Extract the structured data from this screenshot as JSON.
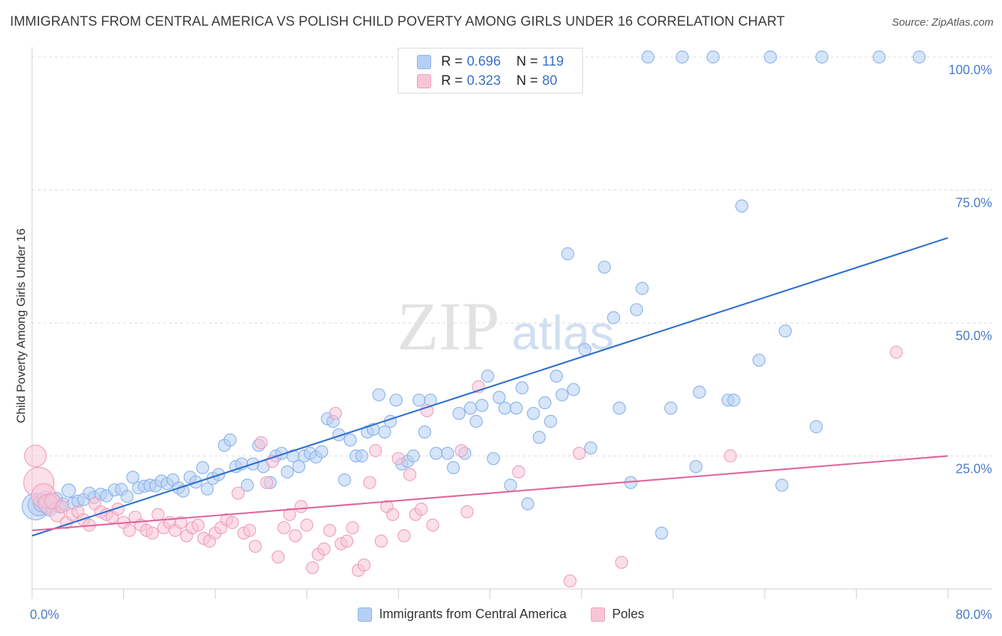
{
  "title": "IMMIGRANTS FROM CENTRAL AMERICA VS POLISH CHILD POVERTY AMONG GIRLS UNDER 16 CORRELATION CHART",
  "source": "Source: ZipAtlas.com",
  "watermark": {
    "zip": "ZIP",
    "atlas": "atlas"
  },
  "stats": {
    "r_label": "R =",
    "n_label": "N =",
    "series1": {
      "r": "0.696",
      "n": "119"
    },
    "series2": {
      "r": "0.323",
      "n": "80"
    }
  },
  "chart_data": {
    "type": "scatter",
    "title": "IMMIGRANTS FROM CENTRAL AMERICA VS POLISH CHILD POVERTY AMONG GIRLS UNDER 16 CORRELATION CHART",
    "xlabel": "",
    "ylabel": "Child Poverty Among Girls Under 16",
    "xlim": [
      0,
      80
    ],
    "ylim": [
      0,
      100
    ],
    "x_tick_labels": {
      "min": "0.0%",
      "max": "80.0%"
    },
    "y_tick_labels": [
      "25.0%",
      "50.0%",
      "75.0%",
      "100.0%"
    ],
    "y_ticks": [
      25,
      50,
      75,
      100
    ],
    "x_ticks": [
      0,
      8,
      16,
      24,
      32,
      40,
      48,
      56,
      64,
      72,
      80
    ],
    "grid": "horizontal dashed",
    "legend_position": "bottom-center",
    "series": [
      {
        "name": "Immigrants from Central America",
        "color": "#8ab4ec",
        "fill": "#b6d0f3",
        "line_color": "#2f6fd1",
        "trend": {
          "x": [
            0,
            80
          ],
          "y": [
            10.0,
            66.0
          ]
        },
        "points": [
          [
            0.3,
            15.5,
            2.2
          ],
          [
            0.6,
            15.8,
            1.8
          ],
          [
            0.9,
            16.2,
            1.5
          ],
          [
            1.2,
            16.8,
            1.4
          ],
          [
            1.5,
            15.2,
            1.3
          ],
          [
            1.8,
            16.5,
            1.2
          ],
          [
            2.1,
            16.9,
            1.1
          ],
          [
            2.4,
            15.4,
            1.0
          ],
          [
            2.7,
            16.0,
            1.0
          ],
          [
            3.2,
            18.5,
            1.1
          ],
          [
            3.6,
            16.1,
            1.0
          ],
          [
            4.0,
            16.5,
            1.0
          ],
          [
            4.5,
            16.8,
            1.0
          ],
          [
            5.0,
            18.0,
            1.0
          ],
          [
            5.4,
            17.2,
            1.0
          ],
          [
            6.0,
            17.8,
            1.0
          ],
          [
            6.5,
            17.5,
            1.0
          ],
          [
            7.2,
            18.6,
            1.0
          ],
          [
            7.8,
            18.7,
            1.0
          ],
          [
            8.3,
            17.4,
            1.0
          ],
          [
            8.8,
            21.0,
            1.0
          ],
          [
            9.3,
            19.0,
            1.0
          ],
          [
            9.8,
            19.3,
            1.0
          ],
          [
            10.3,
            19.5,
            1.0
          ],
          [
            10.8,
            19.4,
            1.0
          ],
          [
            11.3,
            20.3,
            1.0
          ],
          [
            11.8,
            19.8,
            1.0
          ],
          [
            12.3,
            20.5,
            1.0
          ],
          [
            12.8,
            19.0,
            1.0
          ],
          [
            13.2,
            18.4,
            1.0
          ],
          [
            13.8,
            21.0,
            1.0
          ],
          [
            14.3,
            20.1,
            1.0
          ],
          [
            14.9,
            22.8,
            1.0
          ],
          [
            15.3,
            18.8,
            1.0
          ],
          [
            15.8,
            20.8,
            1.0
          ],
          [
            16.3,
            21.5,
            1.0
          ],
          [
            16.8,
            27.0,
            1.0
          ],
          [
            17.3,
            28.0,
            1.0
          ],
          [
            17.8,
            23.0,
            1.0
          ],
          [
            18.3,
            23.5,
            1.0
          ],
          [
            18.8,
            19.5,
            1.0
          ],
          [
            19.3,
            23.5,
            1.0
          ],
          [
            19.8,
            27.0,
            1.0
          ],
          [
            20.2,
            23.0,
            1.0
          ],
          [
            20.8,
            20.0,
            1.0
          ],
          [
            21.3,
            25.0,
            1.0
          ],
          [
            21.8,
            25.5,
            1.0
          ],
          [
            22.3,
            22.0,
            1.0
          ],
          [
            22.8,
            25.0,
            1.0
          ],
          [
            23.3,
            23.0,
            1.0
          ],
          [
            23.8,
            25.0,
            1.0
          ],
          [
            24.3,
            25.5,
            1.0
          ],
          [
            24.8,
            24.8,
            1.0
          ],
          [
            25.3,
            25.8,
            1.0
          ],
          [
            25.8,
            32.0,
            1.0
          ],
          [
            26.3,
            31.5,
            1.0
          ],
          [
            26.8,
            29.0,
            1.0
          ],
          [
            27.3,
            20.5,
            1.0
          ],
          [
            27.8,
            28.0,
            1.0
          ],
          [
            28.3,
            25.0,
            1.0
          ],
          [
            28.8,
            25.0,
            1.0
          ],
          [
            29.3,
            29.5,
            1.0
          ],
          [
            29.8,
            30.0,
            1.0
          ],
          [
            30.3,
            36.5,
            1.0
          ],
          [
            30.8,
            29.5,
            1.0
          ],
          [
            31.3,
            31.5,
            1.0
          ],
          [
            31.8,
            35.5,
            1.0
          ],
          [
            32.3,
            23.5,
            1.0
          ],
          [
            32.8,
            24.0,
            1.0
          ],
          [
            33.3,
            25.0,
            1.0
          ],
          [
            33.8,
            35.5,
            1.0
          ],
          [
            34.3,
            29.5,
            1.0
          ],
          [
            34.8,
            35.5,
            1.0
          ],
          [
            35.3,
            25.5,
            1.0
          ],
          [
            36.3,
            25.5,
            1.0
          ],
          [
            36.8,
            22.8,
            1.0
          ],
          [
            37.3,
            33.0,
            1.0
          ],
          [
            37.8,
            25.5,
            1.0
          ],
          [
            38.3,
            34.0,
            1.0
          ],
          [
            38.8,
            31.5,
            1.0
          ],
          [
            39.3,
            34.5,
            1.0
          ],
          [
            39.8,
            40.0,
            1.0
          ],
          [
            40.3,
            24.5,
            1.0
          ],
          [
            40.8,
            36.0,
            1.0
          ],
          [
            41.3,
            34.0,
            1.0
          ],
          [
            41.8,
            19.5,
            1.0
          ],
          [
            42.3,
            34.0,
            1.0
          ],
          [
            42.8,
            37.8,
            1.0
          ],
          [
            43.3,
            16.0,
            1.0
          ],
          [
            43.8,
            33.0,
            1.0
          ],
          [
            44.3,
            28.5,
            1.0
          ],
          [
            44.8,
            35.0,
            1.0
          ],
          [
            45.3,
            31.5,
            1.0
          ],
          [
            45.8,
            40.0,
            1.0
          ],
          [
            46.3,
            36.5,
            1.0
          ],
          [
            46.8,
            63.0,
            1.0
          ],
          [
            47.3,
            37.5,
            1.0
          ],
          [
            48.3,
            45.0,
            1.0
          ],
          [
            48.8,
            26.5,
            1.0
          ],
          [
            50.0,
            60.5,
            1.0
          ],
          [
            50.8,
            51.0,
            1.0
          ],
          [
            51.3,
            34.0,
            1.0
          ],
          [
            52.3,
            20.0,
            1.0
          ],
          [
            52.8,
            52.5,
            1.0
          ],
          [
            53.3,
            56.5,
            1.0
          ],
          [
            53.8,
            100.0,
            1.0
          ],
          [
            55.0,
            10.5,
            1.0
          ],
          [
            55.8,
            34.0,
            1.0
          ],
          [
            56.8,
            100.0,
            1.0
          ],
          [
            58.0,
            23.0,
            1.0
          ],
          [
            58.3,
            37.0,
            1.0
          ],
          [
            59.5,
            100.0,
            1.0
          ],
          [
            60.8,
            35.5,
            1.0
          ],
          [
            61.3,
            35.5,
            1.0
          ],
          [
            62.0,
            72.0,
            1.0
          ],
          [
            63.5,
            43.0,
            1.0
          ],
          [
            64.5,
            100.0,
            1.0
          ],
          [
            65.5,
            19.5,
            1.0
          ],
          [
            65.8,
            48.5,
            1.0
          ],
          [
            68.5,
            30.5,
            1.0
          ],
          [
            69.0,
            100.0,
            1.0
          ],
          [
            74.0,
            100.0,
            1.0
          ],
          [
            77.5,
            100.0,
            1.0
          ]
        ]
      },
      {
        "name": "Poles",
        "color": "#f0a0bd",
        "fill": "#f7c5d7",
        "line_color": "#e0679a",
        "trend": {
          "x": [
            0,
            80
          ],
          "y": [
            11.0,
            25.0
          ]
        },
        "points": [
          [
            0.3,
            25.0,
            1.8
          ],
          [
            0.6,
            20.0,
            2.5
          ],
          [
            1.0,
            17.5,
            2.0
          ],
          [
            1.4,
            16.0,
            1.6
          ],
          [
            1.8,
            16.5,
            1.3
          ],
          [
            2.2,
            14.0,
            1.2
          ],
          [
            2.6,
            15.5,
            1.0
          ],
          [
            3.0,
            12.5,
            1.0
          ],
          [
            3.5,
            14.0,
            1.0
          ],
          [
            4.0,
            14.5,
            1.0
          ],
          [
            4.5,
            13.0,
            1.0
          ],
          [
            5.0,
            12.0,
            1.0
          ],
          [
            5.5,
            16.0,
            1.0
          ],
          [
            6.0,
            14.5,
            1.0
          ],
          [
            6.5,
            14.0,
            1.0
          ],
          [
            7.0,
            13.5,
            1.0
          ],
          [
            7.5,
            15.0,
            1.0
          ],
          [
            8.0,
            12.5,
            1.0
          ],
          [
            8.5,
            11.0,
            1.0
          ],
          [
            9.0,
            13.5,
            1.0
          ],
          [
            9.5,
            12.0,
            1.0
          ],
          [
            10.0,
            11.0,
            1.0
          ],
          [
            10.5,
            10.5,
            1.0
          ],
          [
            11.0,
            14.0,
            1.0
          ],
          [
            11.5,
            11.5,
            1.0
          ],
          [
            12.0,
            12.5,
            1.0
          ],
          [
            12.5,
            11.0,
            1.0
          ],
          [
            13.0,
            12.5,
            1.0
          ],
          [
            13.5,
            10.0,
            1.0
          ],
          [
            14.0,
            11.5,
            1.0
          ],
          [
            14.5,
            12.0,
            1.0
          ],
          [
            15.0,
            9.5,
            1.0
          ],
          [
            15.5,
            9.0,
            1.0
          ],
          [
            16.0,
            10.5,
            1.0
          ],
          [
            16.5,
            11.5,
            1.0
          ],
          [
            17.0,
            13.0,
            1.0
          ],
          [
            17.5,
            12.5,
            1.0
          ],
          [
            18.0,
            18.0,
            1.0
          ],
          [
            18.5,
            10.5,
            1.0
          ],
          [
            19.0,
            11.0,
            1.0
          ],
          [
            19.5,
            8.0,
            1.0
          ],
          [
            20.0,
            27.5,
            1.0
          ],
          [
            20.5,
            20.0,
            1.0
          ],
          [
            21.0,
            24.0,
            1.0
          ],
          [
            21.5,
            6.0,
            1.0
          ],
          [
            22.0,
            11.5,
            1.0
          ],
          [
            22.5,
            14.0,
            1.0
          ],
          [
            23.0,
            10.0,
            1.0
          ],
          [
            23.5,
            15.5,
            1.0
          ],
          [
            24.0,
            12.0,
            1.0
          ],
          [
            24.5,
            4.0,
            1.0
          ],
          [
            25.0,
            6.5,
            1.0
          ],
          [
            25.5,
            7.5,
            1.0
          ],
          [
            26.0,
            11.0,
            1.0
          ],
          [
            26.5,
            33.0,
            1.0
          ],
          [
            27.0,
            8.5,
            1.0
          ],
          [
            27.5,
            9.0,
            1.0
          ],
          [
            28.0,
            11.5,
            1.0
          ],
          [
            28.5,
            3.5,
            1.0
          ],
          [
            29.0,
            4.5,
            1.0
          ],
          [
            29.5,
            20.0,
            1.0
          ],
          [
            30.0,
            26.0,
            1.0
          ],
          [
            30.5,
            9.0,
            1.0
          ],
          [
            31.0,
            15.5,
            1.0
          ],
          [
            31.5,
            14.0,
            1.0
          ],
          [
            32.0,
            24.5,
            1.0
          ],
          [
            32.5,
            10.0,
            1.0
          ],
          [
            33.0,
            21.5,
            1.0
          ],
          [
            33.5,
            14.0,
            1.0
          ],
          [
            34.0,
            15.0,
            1.0
          ],
          [
            34.5,
            33.5,
            1.0
          ],
          [
            35.0,
            12.0,
            1.0
          ],
          [
            37.5,
            26.0,
            1.0
          ],
          [
            38.0,
            14.5,
            1.0
          ],
          [
            39.0,
            38.0,
            1.0
          ],
          [
            42.5,
            22.0,
            1.0
          ],
          [
            47.0,
            1.5,
            1.0
          ],
          [
            47.8,
            25.5,
            1.0
          ],
          [
            51.5,
            5.0,
            1.0
          ],
          [
            61.0,
            25.0,
            1.0
          ],
          [
            75.5,
            44.5,
            1.0
          ]
        ]
      }
    ]
  }
}
